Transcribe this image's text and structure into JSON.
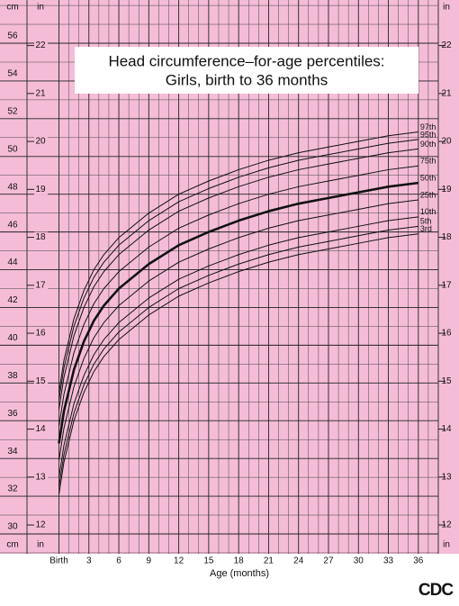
{
  "chart_data": {
    "type": "line",
    "title": "Head circumference–for-age percentiles:",
    "subtitle": "Girls, birth to 36 months",
    "x_label": "Age (months)",
    "y_unit": "cm",
    "y2_unit": "in",
    "logo": "CDC",
    "x": [
      0,
      0.5,
      1.5,
      2.5,
      3.5,
      4.5,
      6,
      9,
      12,
      15,
      18,
      21,
      24,
      27,
      30,
      33,
      36
    ],
    "xlim": [
      -3.2,
      38
    ],
    "xticks": [
      {
        "value": 0,
        "label": "Birth"
      },
      3,
      6,
      9,
      12,
      15,
      18,
      21,
      24,
      27,
      30,
      33,
      36
    ],
    "x_minor_ticks": [
      1,
      2,
      4,
      5,
      7,
      8,
      10,
      11,
      13,
      14,
      16,
      17,
      19,
      20,
      22,
      23,
      25,
      26,
      28,
      29,
      31,
      32,
      34,
      35,
      37
    ],
    "ylim": [
      28.95,
      58.29
    ],
    "yticks": [
      30,
      32,
      34,
      36,
      38,
      40,
      42,
      44,
      46,
      48,
      50,
      52,
      54,
      56
    ],
    "y_minor_ticks": [
      29,
      31,
      33,
      35,
      37,
      39,
      41,
      43,
      45,
      47,
      49,
      51,
      53,
      55,
      57,
      58
    ],
    "y2lim": [
      11.4,
      22.95
    ],
    "y2ticks": [
      12,
      13,
      14,
      15,
      16,
      17,
      18,
      19,
      20,
      21,
      22
    ],
    "grid": true,
    "background": "#f5bcd8",
    "series": [
      {
        "name": "97th",
        "color": "#111111",
        "width": 1,
        "values": [
          37.5,
          39.2,
          41.4,
          42.9,
          44.0,
          44.8,
          45.7,
          47.0,
          48.0,
          48.7,
          49.3,
          49.8,
          50.2,
          50.5,
          50.8,
          51.1,
          51.3
        ]
      },
      {
        "name": "95th",
        "color": "#111111",
        "width": 1,
        "values": [
          37.1,
          38.8,
          41.0,
          42.5,
          43.6,
          44.4,
          45.3,
          46.6,
          47.6,
          48.3,
          48.9,
          49.4,
          49.8,
          50.1,
          50.4,
          50.7,
          50.9
        ]
      },
      {
        "name": "90th",
        "color": "#111111",
        "width": 1,
        "values": [
          36.6,
          38.3,
          40.5,
          42.0,
          43.1,
          43.9,
          44.8,
          46.1,
          47.1,
          47.8,
          48.4,
          48.9,
          49.3,
          49.6,
          49.9,
          50.2,
          50.4
        ]
      },
      {
        "name": "75th",
        "color": "#111111",
        "width": 1,
        "values": [
          35.7,
          37.4,
          39.6,
          41.1,
          42.2,
          43.0,
          43.9,
          45.2,
          46.2,
          46.9,
          47.5,
          48.0,
          48.4,
          48.7,
          49.0,
          49.3,
          49.5
        ]
      },
      {
        "name": "50th",
        "color": "#111111",
        "width": 2.6,
        "values": [
          34.8,
          36.5,
          38.7,
          40.2,
          41.3,
          42.1,
          43.0,
          44.3,
          45.3,
          46.0,
          46.6,
          47.1,
          47.5,
          47.8,
          48.1,
          48.4,
          48.6
        ]
      },
      {
        "name": "25th",
        "color": "#111111",
        "width": 1,
        "values": [
          33.9,
          35.6,
          37.8,
          39.3,
          40.4,
          41.2,
          42.1,
          43.4,
          44.4,
          45.1,
          45.7,
          46.2,
          46.6,
          46.9,
          47.2,
          47.5,
          47.7
        ]
      },
      {
        "name": "10th",
        "color": "#111111",
        "width": 1,
        "values": [
          33.0,
          34.7,
          36.9,
          38.4,
          39.5,
          40.3,
          41.2,
          42.5,
          43.5,
          44.2,
          44.8,
          45.3,
          45.7,
          46.0,
          46.3,
          46.6,
          46.8
        ]
      },
      {
        "name": "5th",
        "color": "#111111",
        "width": 1,
        "values": [
          32.5,
          34.2,
          36.4,
          37.9,
          39.0,
          39.8,
          40.7,
          42.0,
          43.0,
          43.7,
          44.3,
          44.8,
          45.2,
          45.5,
          45.8,
          46.1,
          46.3
        ]
      },
      {
        "name": "3rd",
        "color": "#111111",
        "width": 1,
        "values": [
          32.1,
          33.8,
          36.0,
          37.5,
          38.6,
          39.4,
          40.3,
          41.6,
          42.6,
          43.3,
          43.9,
          44.4,
          44.8,
          45.1,
          45.4,
          45.7,
          45.9
        ]
      }
    ]
  }
}
